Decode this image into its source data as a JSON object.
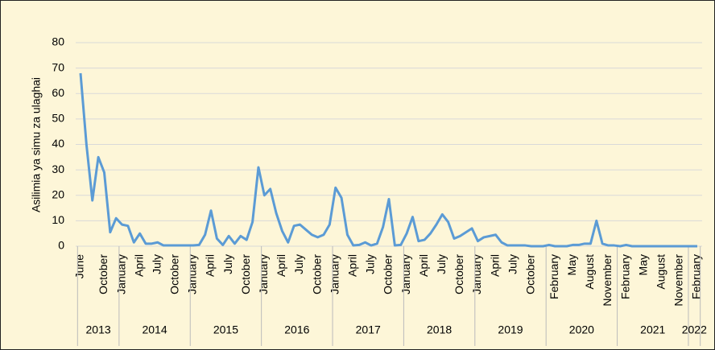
{
  "chart_data": {
    "type": "line",
    "y_label": "Asilimia ya simu za ulaghai",
    "categories": [
      "June",
      null,
      null,
      null,
      "October",
      null,
      null,
      "January",
      null,
      null,
      "April",
      null,
      null,
      "July",
      null,
      null,
      "October",
      null,
      null,
      "January",
      null,
      null,
      "April",
      null,
      null,
      "July",
      null,
      null,
      "October",
      null,
      null,
      "January",
      null,
      null,
      "April",
      null,
      null,
      "July",
      null,
      null,
      "October",
      null,
      null,
      "January",
      null,
      null,
      "April",
      null,
      null,
      "July",
      null,
      null,
      "October",
      null,
      null,
      "January",
      null,
      null,
      "April",
      null,
      null,
      "July",
      null,
      null,
      "October",
      null,
      null,
      "January",
      null,
      null,
      "April",
      null,
      null,
      "July",
      null,
      null,
      "October",
      null,
      null,
      null,
      "February",
      null,
      null,
      "May",
      null,
      null,
      "August",
      null,
      null,
      "November",
      null,
      null,
      "February",
      null,
      null,
      "May",
      null,
      null,
      "August",
      null,
      null,
      "November",
      null,
      null,
      "February"
    ],
    "years": [
      "2013",
      "2014",
      "2015",
      "2016",
      "2017",
      "2018",
      "2019",
      "2020",
      "2021",
      "2022"
    ],
    "series": [
      {
        "name": "Asilimia",
        "color": "#5b9bd5",
        "values": [
          68,
          40,
          18,
          35,
          29,
          5.5,
          11,
          8.5,
          8,
          1.5,
          5,
          1,
          1,
          1.5,
          0.3,
          0.3,
          0.3,
          0.3,
          0.3,
          0.3,
          0.5,
          4.5,
          14,
          3,
          0.5,
          4,
          1,
          4,
          2.5,
          9.5,
          31,
          20,
          22.5,
          13,
          6,
          1.5,
          8,
          8.5,
          6.5,
          4.5,
          3.5,
          4.5,
          8.5,
          23,
          19,
          4.5,
          0.3,
          0.5,
          1.5,
          0.3,
          1,
          7.5,
          18.5,
          0.3,
          0.5,
          5,
          11.5,
          2,
          2.5,
          5,
          8.5,
          12.5,
          9.5,
          3,
          4,
          5.5,
          7,
          2,
          3.5,
          4,
          4.5,
          1.5,
          0.3,
          0.3,
          0.3,
          0.3,
          0,
          0,
          0,
          0.5,
          0,
          0,
          0,
          0.5,
          0.5,
          1,
          1,
          10,
          1,
          0.3,
          0.3,
          0,
          0.5,
          0,
          0,
          0,
          0,
          0,
          0,
          0,
          0,
          0,
          0,
          0,
          0
        ]
      }
    ],
    "ylim": [
      0,
      80
    ],
    "yticks": [
      0,
      10,
      20,
      30,
      40,
      50,
      60,
      70,
      80
    ],
    "grid": true
  }
}
